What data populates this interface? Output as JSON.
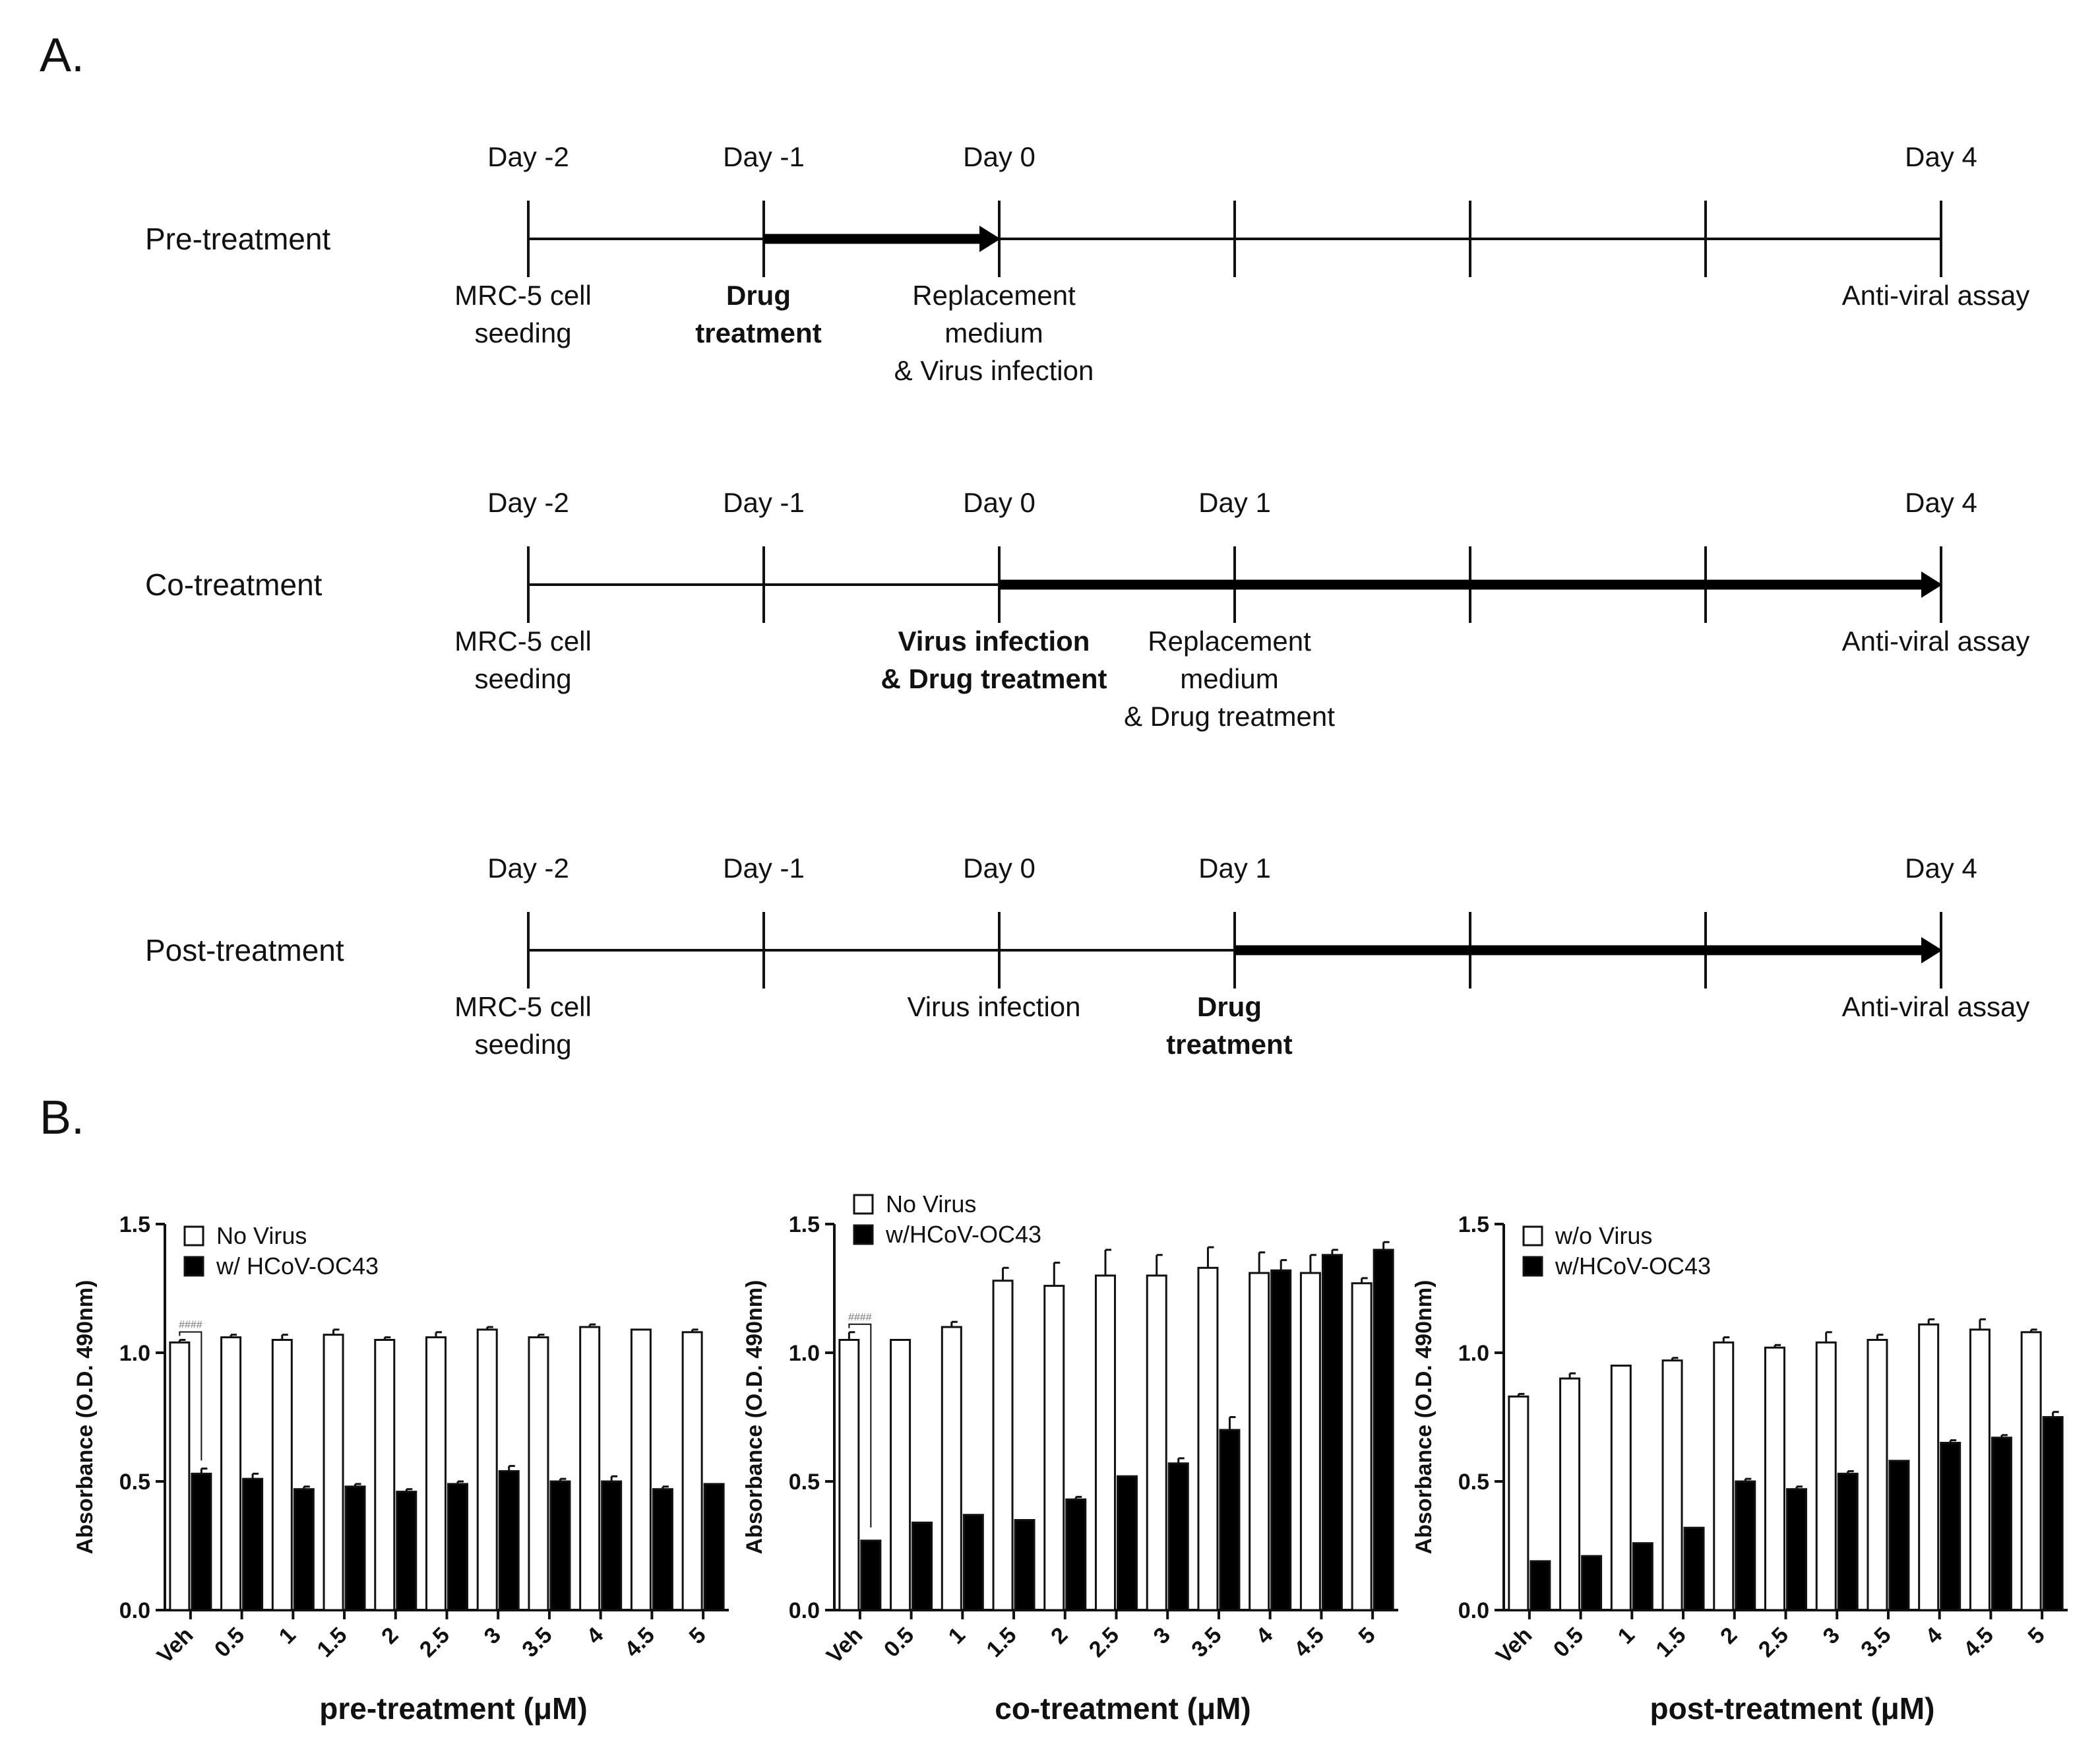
{
  "panel_a_label": "A.",
  "panel_b_label": "B.",
  "timelines": [
    {
      "label": "Pre-treatment",
      "days": [
        {
          "text": "Day -2",
          "slot": 0
        },
        {
          "text": "Day -1",
          "slot": 1
        },
        {
          "text": "Day 0",
          "slot": 2
        },
        {
          "text": "Day 4",
          "slot": 6
        }
      ],
      "arrow": {
        "from_slot": 1,
        "to_slot": 2
      },
      "annotations": [
        {
          "lines": [
            "MRC-5 cell",
            "seeding"
          ],
          "slot": 0,
          "bold": false
        },
        {
          "lines": [
            "Drug",
            "treatment"
          ],
          "slot": 1,
          "bold": true
        },
        {
          "lines": [
            "Replacement",
            "medium",
            "& Virus infection"
          ],
          "slot": 2,
          "bold": false
        },
        {
          "lines": [
            "Anti-viral assay"
          ],
          "slot": 6,
          "bold": false
        }
      ]
    },
    {
      "label": "Co-treatment",
      "days": [
        {
          "text": "Day -2",
          "slot": 0
        },
        {
          "text": "Day -1",
          "slot": 1
        },
        {
          "text": "Day 0",
          "slot": 2
        },
        {
          "text": "Day 1",
          "slot": 3
        },
        {
          "text": "Day 4",
          "slot": 6
        }
      ],
      "arrow": {
        "from_slot": 2,
        "to_slot": 6
      },
      "annotations": [
        {
          "lines": [
            "MRC-5 cell",
            "seeding"
          ],
          "slot": 0,
          "bold": false
        },
        {
          "lines": [
            "Virus infection",
            "& Drug treatment"
          ],
          "slot": 2,
          "bold": true
        },
        {
          "lines": [
            "Replacement",
            "medium",
            "& Drug treatment"
          ],
          "slot": 3,
          "bold": false
        },
        {
          "lines": [
            "Anti-viral assay"
          ],
          "slot": 6,
          "bold": false
        }
      ]
    },
    {
      "label": "Post-treatment",
      "days": [
        {
          "text": "Day -2",
          "slot": 0
        },
        {
          "text": "Day -1",
          "slot": 1
        },
        {
          "text": "Day 0",
          "slot": 2
        },
        {
          "text": "Day 1",
          "slot": 3
        },
        {
          "text": "Day 4",
          "slot": 6
        }
      ],
      "arrow": {
        "from_slot": 3,
        "to_slot": 6
      },
      "annotations": [
        {
          "lines": [
            "MRC-5 cell",
            "seeding"
          ],
          "slot": 0,
          "bold": false
        },
        {
          "lines": [
            "Virus infection"
          ],
          "slot": 2,
          "bold": false
        },
        {
          "lines": [
            "Drug",
            "treatment"
          ],
          "slot": 3,
          "bold": true
        },
        {
          "lines": [
            "Anti-viral assay"
          ],
          "slot": 6,
          "bold": false
        }
      ]
    }
  ],
  "chart_data": [
    {
      "type": "bar",
      "categories": [
        "Veh",
        "0.5",
        "1",
        "1.5",
        "2",
        "2.5",
        "3",
        "3.5",
        "4",
        "4.5",
        "5"
      ],
      "series": [
        {
          "name": "No Virus",
          "color": "#ffffff",
          "values": [
            1.04,
            1.06,
            1.05,
            1.07,
            1.05,
            1.06,
            1.09,
            1.06,
            1.1,
            1.09,
            1.08
          ],
          "errors": [
            0.01,
            0.01,
            0.02,
            0.02,
            0.01,
            0.02,
            0.01,
            0.01,
            0.01,
            0.0,
            0.01
          ]
        },
        {
          "name": "w/ HCoV-OC43",
          "color": "#000000",
          "values": [
            0.53,
            0.51,
            0.47,
            0.48,
            0.46,
            0.49,
            0.54,
            0.5,
            0.5,
            0.47,
            0.49
          ],
          "errors": [
            0.02,
            0.02,
            0.01,
            0.01,
            0.01,
            0.01,
            0.02,
            0.01,
            0.02,
            0.01,
            0.0
          ]
        }
      ],
      "significance": "####",
      "title": "",
      "xlabel": "pre-treatment (μM)",
      "ylabel": "Absorbance (O.D. 490nm)",
      "ylim": [
        0,
        1.5
      ],
      "yticks": [
        "0.0",
        "0.5",
        "1.0",
        "1.5"
      ],
      "legend_position": "top-left"
    },
    {
      "type": "bar",
      "categories": [
        "Veh",
        "0.5",
        "1",
        "1.5",
        "2",
        "2.5",
        "3",
        "3.5",
        "4",
        "4.5",
        "5"
      ],
      "series": [
        {
          "name": "No Virus",
          "color": "#ffffff",
          "values": [
            1.05,
            1.05,
            1.1,
            1.28,
            1.26,
            1.3,
            1.3,
            1.33,
            1.31,
            1.31,
            1.27
          ],
          "errors": [
            0.03,
            0.0,
            0.02,
            0.05,
            0.09,
            0.1,
            0.08,
            0.08,
            0.08,
            0.07,
            0.02
          ]
        },
        {
          "name": "w/HCoV-OC43",
          "color": "#000000",
          "values": [
            0.27,
            0.34,
            0.37,
            0.35,
            0.43,
            0.52,
            0.57,
            0.7,
            1.32,
            1.38,
            1.4
          ],
          "errors": [
            0.0,
            0.0,
            0.0,
            0.0,
            0.01,
            0.0,
            0.02,
            0.05,
            0.04,
            0.02,
            0.03
          ]
        }
      ],
      "significance": "####",
      "title": "",
      "xlabel": "co-treatment (μM)",
      "ylabel": "Absorbance (O.D. 490nm)",
      "ylim": [
        0,
        1.5
      ],
      "yticks": [
        "0.0",
        "0.5",
        "1.0",
        "1.5"
      ],
      "legend_position": "top-left"
    },
    {
      "type": "bar",
      "categories": [
        "Veh",
        "0.5",
        "1",
        "1.5",
        "2",
        "2.5",
        "3",
        "3.5",
        "4",
        "4.5",
        "5"
      ],
      "series": [
        {
          "name": "w/o Virus",
          "color": "#ffffff",
          "values": [
            0.83,
            0.9,
            0.95,
            0.97,
            1.04,
            1.02,
            1.04,
            1.05,
            1.11,
            1.09,
            1.08
          ],
          "errors": [
            0.01,
            0.02,
            0.0,
            0.01,
            0.02,
            0.01,
            0.04,
            0.02,
            0.02,
            0.04,
            0.01
          ]
        },
        {
          "name": "w/HCoV-OC43",
          "color": "#000000",
          "values": [
            0.19,
            0.21,
            0.26,
            0.32,
            0.5,
            0.47,
            0.53,
            0.58,
            0.65,
            0.67,
            0.75
          ],
          "errors": [
            0.0,
            0.0,
            0.0,
            0.0,
            0.01,
            0.01,
            0.01,
            0.0,
            0.01,
            0.01,
            0.02
          ]
        }
      ],
      "significance": "",
      "title": "",
      "xlabel": "post-treatment (μM)",
      "ylabel": "Absorbance (O.D. 490nm)",
      "ylim": [
        0,
        1.5
      ],
      "yticks": [
        "0.0",
        "0.5",
        "1.0",
        "1.5"
      ],
      "legend_position": "top-left"
    }
  ]
}
